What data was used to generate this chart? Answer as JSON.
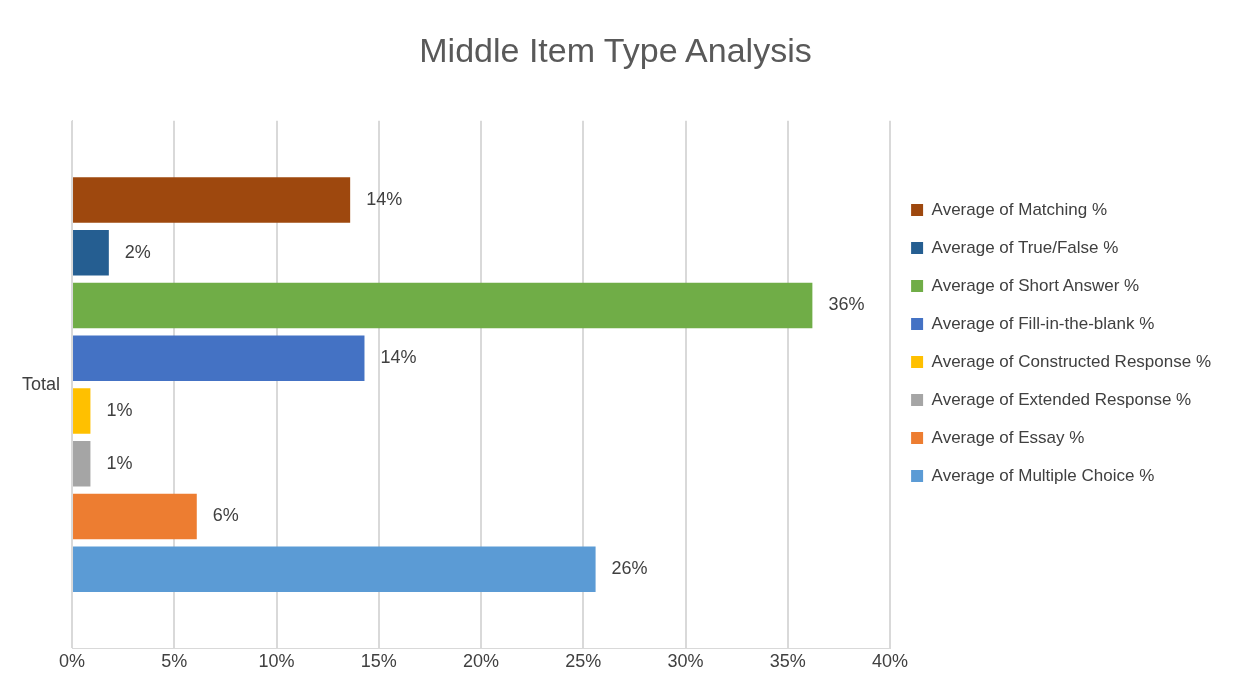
{
  "chart_data": {
    "type": "bar",
    "title": "Middle Item Type Analysis",
    "orientation": "horizontal",
    "categories": [
      "Total"
    ],
    "series": [
      {
        "name": "Average of Matching %",
        "color": "#9e480e",
        "values": [
          13.6
        ],
        "value_labels": [
          "14%"
        ]
      },
      {
        "name": "Average of True/False %",
        "color": "#255e91",
        "values": [
          1.8
        ],
        "value_labels": [
          "2%"
        ]
      },
      {
        "name": "Average of Short Answer %",
        "color": "#70ad47",
        "values": [
          36.2
        ],
        "value_labels": [
          "36%"
        ]
      },
      {
        "name": "Average of Fill-in-the-blank %",
        "color": "#4472c4",
        "values": [
          14.3
        ],
        "value_labels": [
          "14%"
        ]
      },
      {
        "name": "Average of Constructed Response %",
        "color": "#ffc000",
        "values": [
          0.9
        ],
        "value_labels": [
          "1%"
        ]
      },
      {
        "name": "Average of Extended Response %",
        "color": "#a5a5a5",
        "values": [
          0.9
        ],
        "value_labels": [
          "1%"
        ]
      },
      {
        "name": "Average of Essay %",
        "color": "#ed7d31",
        "values": [
          6.1
        ],
        "value_labels": [
          "6%"
        ]
      },
      {
        "name": "Average of Multiple Choice %",
        "color": "#5b9bd5",
        "values": [
          25.6
        ],
        "value_labels": [
          "26%"
        ]
      }
    ],
    "xlim": [
      0,
      40
    ],
    "xticks": [
      {
        "value": 0,
        "label": "0%"
      },
      {
        "value": 5,
        "label": "5%"
      },
      {
        "value": 10,
        "label": "10%"
      },
      {
        "value": 15,
        "label": "15%"
      },
      {
        "value": 20,
        "label": "20%"
      },
      {
        "value": 25,
        "label": "25%"
      },
      {
        "value": 30,
        "label": "30%"
      },
      {
        "value": 35,
        "label": "35%"
      },
      {
        "value": 40,
        "label": "40%"
      }
    ],
    "grid": "x",
    "legend": "right"
  }
}
